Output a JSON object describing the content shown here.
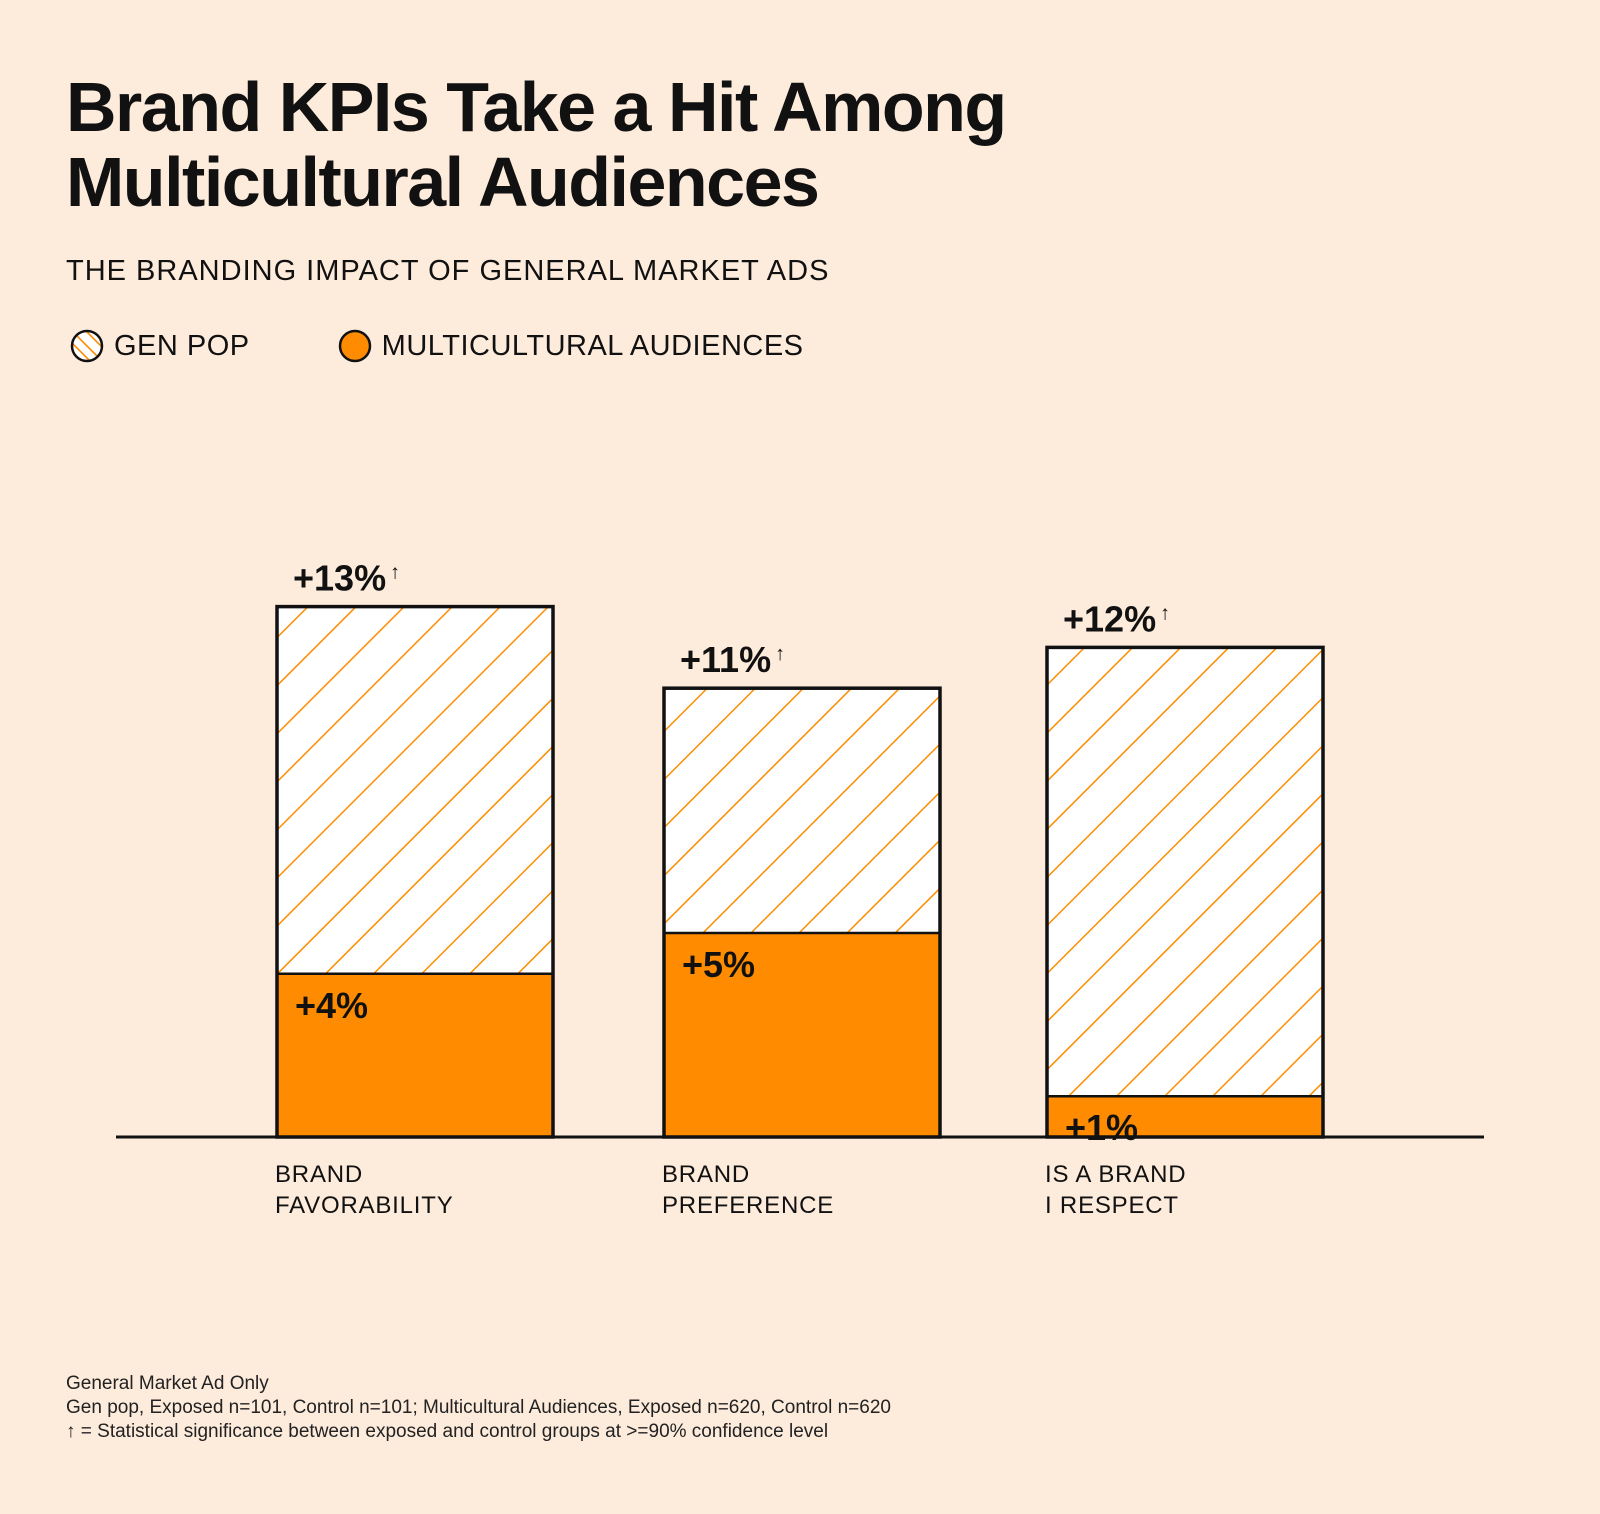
{
  "header": {
    "title_line1": "Brand KPIs Take a Hit Among",
    "title_line2": "Multicultural Audiences",
    "subtitle": "THE BRANDING IMPACT OF GENERAL MARKET ADS"
  },
  "legend": {
    "gen_pop_label": "GEN POP",
    "multicultural_label": "MULTICULTURAL AUDIENCES"
  },
  "colors": {
    "background": "#fdebdc",
    "orange": "#ff8c00",
    "ink": "#111111"
  },
  "chart_data": {
    "type": "bar",
    "title": "Brand KPIs Take a Hit Among Multicultural Audiences",
    "subtitle": "THE BRANDING IMPACT OF GENERAL MARKET ADS",
    "categories": [
      [
        "BRAND",
        "FAVORABILITY"
      ],
      [
        "BRAND",
        "PREFERENCE"
      ],
      [
        "IS A BRAND",
        "I RESPECT"
      ]
    ],
    "series": [
      {
        "name": "GEN POP",
        "values": [
          13,
          11,
          12
        ],
        "labels": [
          "+13%",
          "+11%",
          "+12%"
        ],
        "significant": [
          true,
          true,
          true
        ],
        "style": "hatched-orange-outline"
      },
      {
        "name": "MULTICULTURAL AUDIENCES",
        "values": [
          4,
          5,
          1
        ],
        "labels": [
          "+4%",
          "+5%",
          "+1%"
        ],
        "significant": [
          false,
          false,
          false
        ],
        "style": "solid-orange"
      }
    ],
    "significance_marker": "↑",
    "ylim": [
      0,
      13
    ],
    "overlay": true,
    "grid": false,
    "legend_position": "top-left",
    "xlabel": "",
    "ylabel": ""
  },
  "footnotes": [
    "General Market Ad Only",
    "Gen pop, Exposed n=101, Control n=101; Multicultural Audiences, Exposed n=620, Control n=620",
    "↑ = Statistical significance between exposed and control groups at >=90% confidence level"
  ]
}
